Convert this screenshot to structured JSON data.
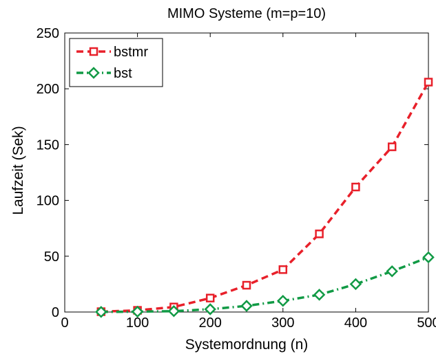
{
  "chart_data": {
    "type": "line",
    "title": "MIMO Systeme (m=p=10)",
    "xlabel": "Systemordnung (n)",
    "ylabel": "Laufzeit (Sek)",
    "xlim": [
      0,
      500
    ],
    "ylim": [
      0,
      250
    ],
    "xticks": [
      0,
      100,
      200,
      300,
      400,
      500
    ],
    "yticks": [
      0,
      50,
      100,
      150,
      200,
      250
    ],
    "grid": false,
    "legend_position": "top-left",
    "x": [
      50,
      100,
      150,
      200,
      250,
      300,
      350,
      400,
      450,
      500
    ],
    "series": [
      {
        "name": "bstmr",
        "values": [
          0.3,
          1.5,
          4.5,
          12.5,
          24,
          38,
          70,
          112,
          148,
          206
        ],
        "color": "#e8202a",
        "line_style": "dashed",
        "marker": "square"
      },
      {
        "name": "bst",
        "values": [
          0.1,
          0.3,
          0.8,
          2.5,
          5.5,
          10,
          15.5,
          25,
          36.5,
          49
        ],
        "color": "#119a45",
        "line_style": "dash-dot",
        "marker": "diamond"
      }
    ]
  }
}
